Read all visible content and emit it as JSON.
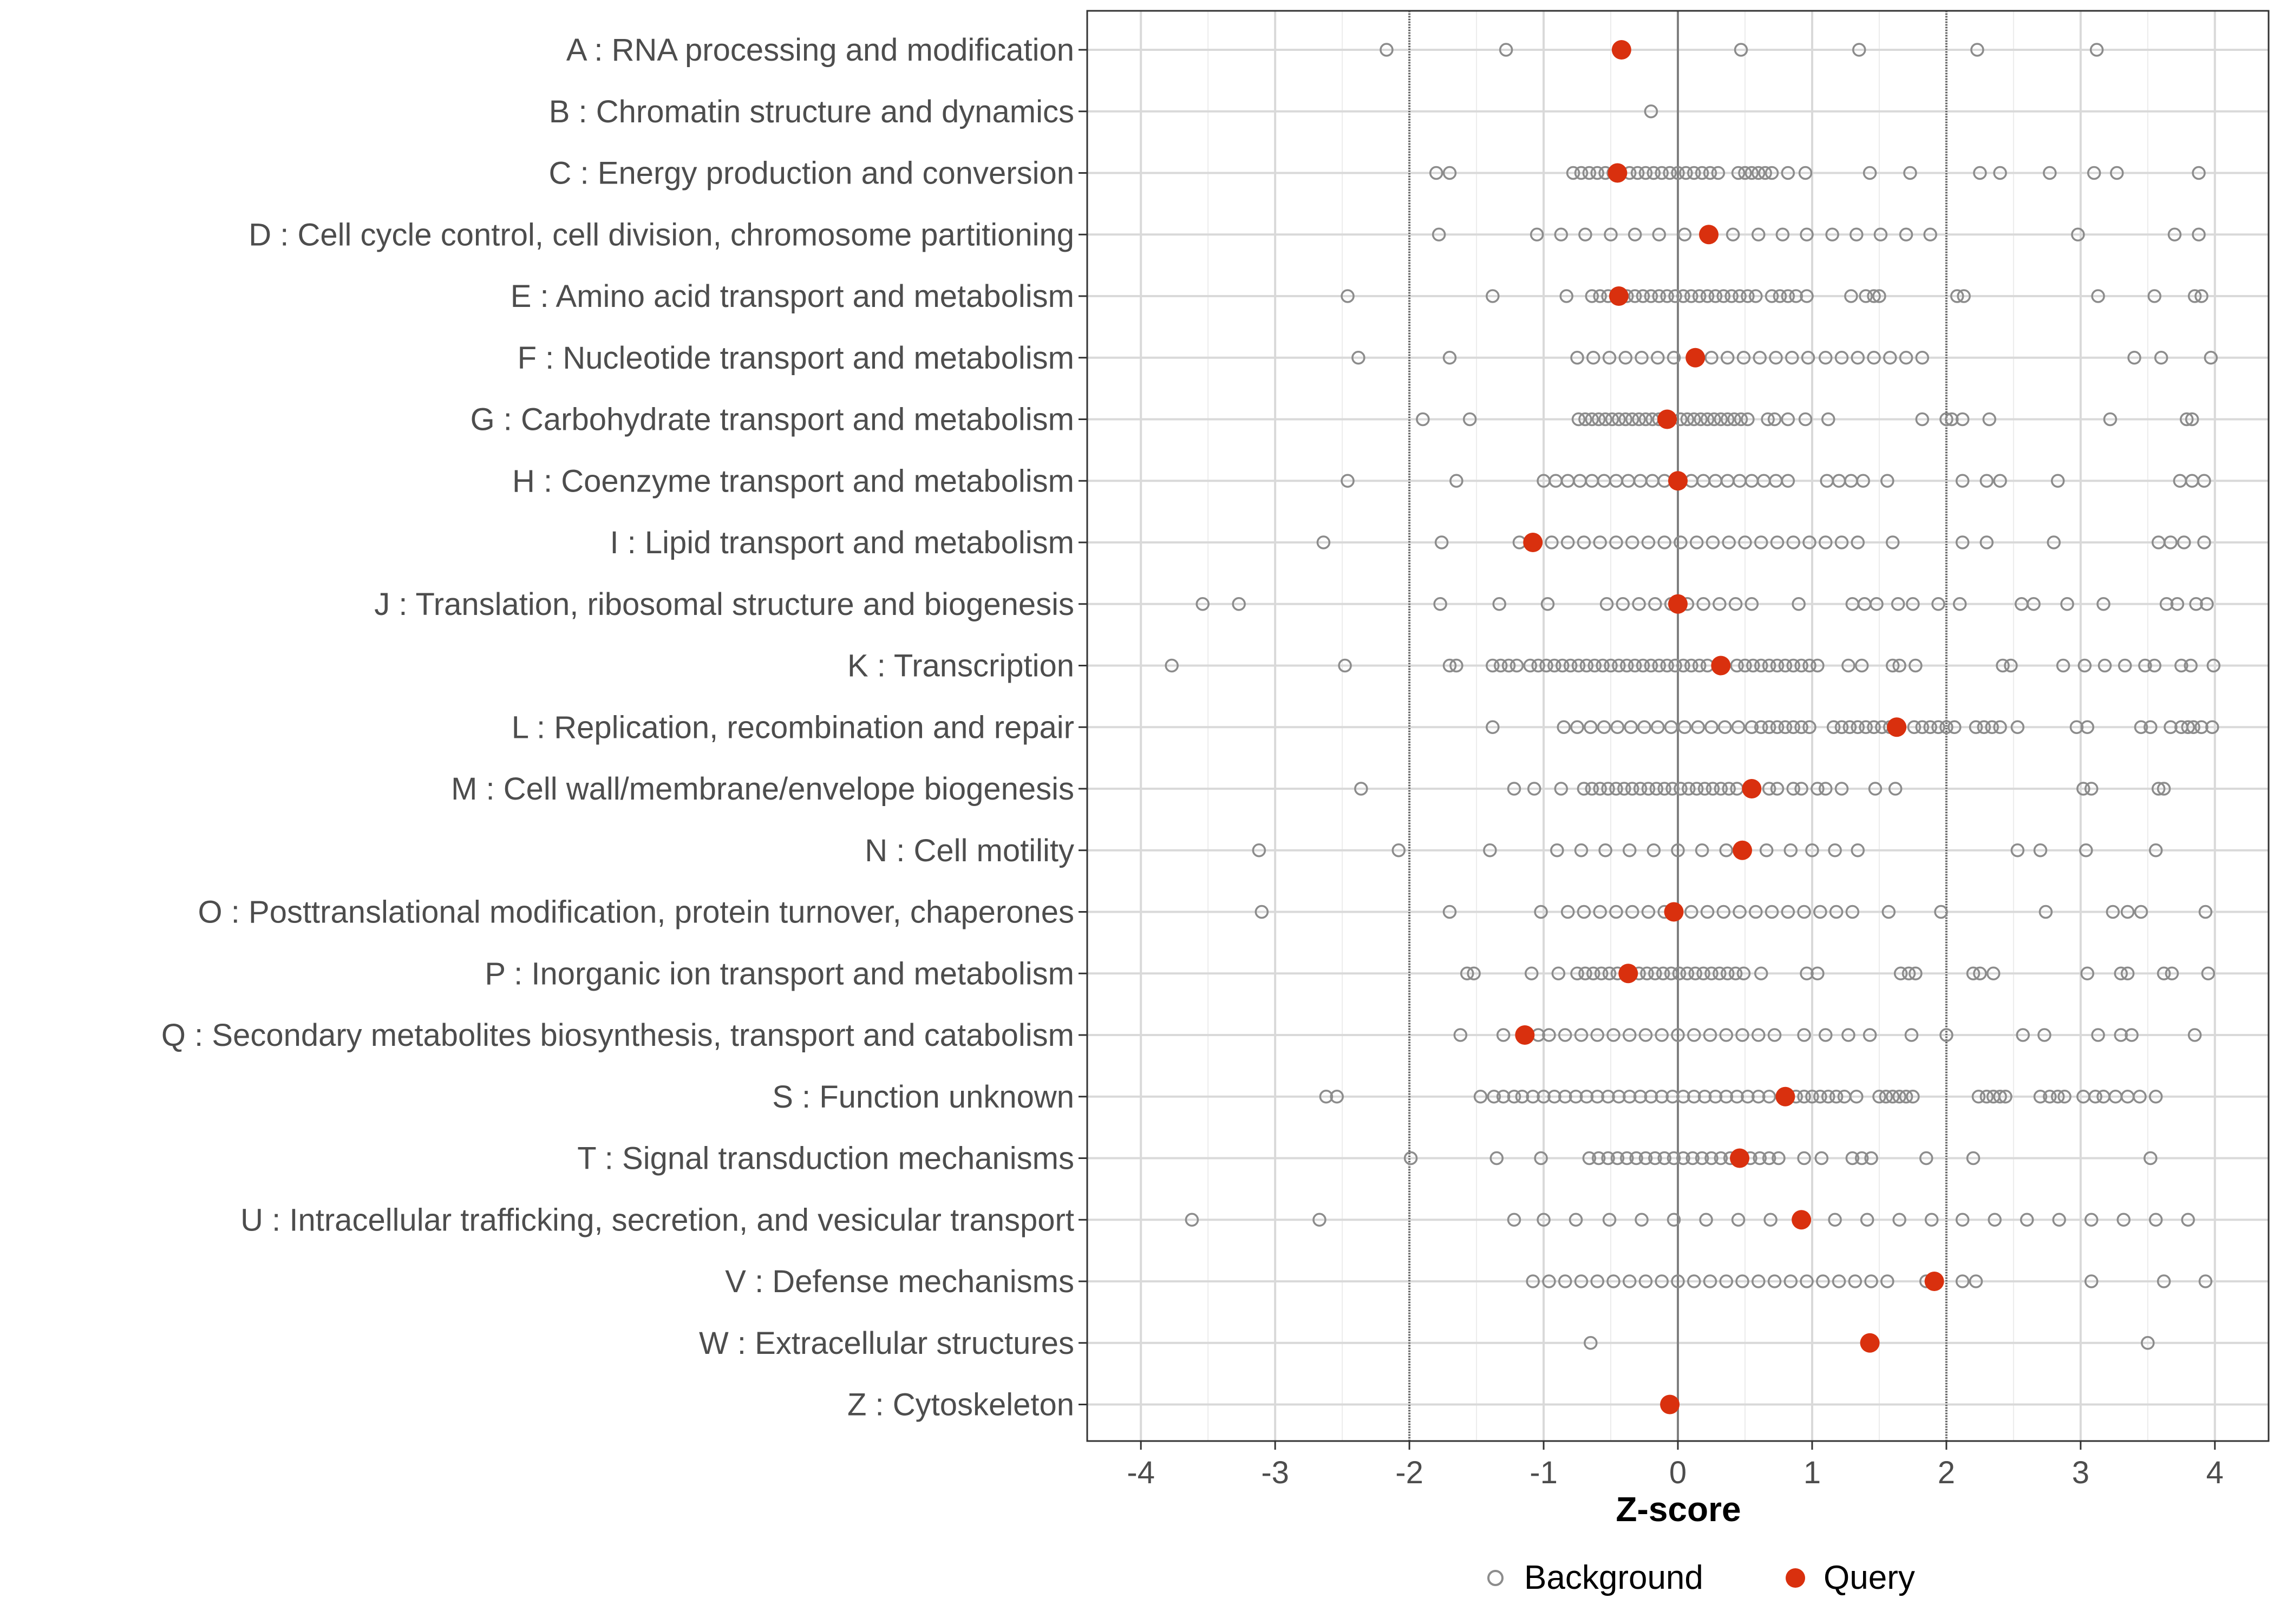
{
  "chart_data": {
    "type": "scatter",
    "xlabel": "Z-score",
    "xlim": [
      -4.4,
      4.4
    ],
    "xticks": [
      -4,
      -3,
      -2,
      -1,
      0,
      1,
      2,
      3,
      4
    ],
    "reference_lines": [
      -2,
      0,
      2
    ],
    "legend": {
      "position": "bottom",
      "entries": [
        {
          "label": "Background",
          "marker": "open-circle"
        },
        {
          "label": "Query",
          "marker": "filled-circle"
        }
      ]
    },
    "colors": {
      "background": "#8c8c8c",
      "query": "#d9300e",
      "grid": "#d9d9d9",
      "panel_border": "#333333",
      "reference": "#555555"
    },
    "categories": [
      {
        "label": "A : RNA processing and modification",
        "query": -0.42,
        "background": [
          -2.17,
          -1.28,
          0.47,
          1.35,
          2.23,
          3.12
        ]
      },
      {
        "label": "B : Chromatin structure and dynamics",
        "query": null,
        "background": [
          -0.2
        ]
      },
      {
        "label": "C : Energy production and conversion",
        "query": -0.45,
        "background": [
          -1.8,
          -1.7,
          -0.78,
          -0.72,
          -0.66,
          -0.6,
          -0.54,
          -0.48,
          -0.36,
          -0.3,
          -0.24,
          -0.18,
          -0.12,
          -0.06,
          0.0,
          0.06,
          0.12,
          0.18,
          0.24,
          0.3,
          0.45,
          0.5,
          0.55,
          0.6,
          0.65,
          0.7,
          0.82,
          0.95,
          1.43,
          1.73,
          2.25,
          2.4,
          2.77,
          3.1,
          3.27,
          3.88
        ]
      },
      {
        "label": "D : Cell cycle control, cell division, chromosome partitioning",
        "query": 0.23,
        "background": [
          -1.78,
          -1.05,
          -0.87,
          -0.69,
          -0.5,
          -0.32,
          -0.14,
          0.05,
          0.41,
          0.6,
          0.78,
          0.96,
          1.15,
          1.33,
          1.51,
          1.7,
          1.88,
          2.98,
          3.7,
          3.88
        ]
      },
      {
        "label": "E : Amino acid transport and metabolism",
        "query": -0.44,
        "background": [
          -2.46,
          -1.38,
          -0.83,
          -0.64,
          -0.58,
          -0.52,
          -0.38,
          -0.32,
          -0.26,
          -0.2,
          -0.14,
          -0.08,
          -0.02,
          0.04,
          0.1,
          0.16,
          0.22,
          0.28,
          0.34,
          0.4,
          0.46,
          0.52,
          0.58,
          0.7,
          0.76,
          0.82,
          0.88,
          0.96,
          1.29,
          1.4,
          1.46,
          1.5,
          2.08,
          2.13,
          3.13,
          3.55,
          3.85,
          3.9
        ]
      },
      {
        "label": "F : Nucleotide transport and metabolism",
        "query": 0.13,
        "background": [
          -2.38,
          -1.7,
          -0.75,
          -0.63,
          -0.51,
          -0.39,
          -0.27,
          -0.15,
          -0.03,
          0.25,
          0.37,
          0.49,
          0.61,
          0.73,
          0.85,
          0.97,
          1.1,
          1.22,
          1.34,
          1.46,
          1.58,
          1.7,
          1.82,
          3.4,
          3.6,
          3.97
        ]
      },
      {
        "label": "G : Carbohydrate transport and metabolism",
        "query": -0.08,
        "background": [
          -1.9,
          -1.55,
          -0.74,
          -0.69,
          -0.64,
          -0.59,
          -0.54,
          -0.49,
          -0.44,
          -0.39,
          -0.34,
          -0.29,
          -0.24,
          -0.19,
          -0.14,
          0.02,
          0.07,
          0.12,
          0.17,
          0.22,
          0.27,
          0.32,
          0.37,
          0.42,
          0.47,
          0.52,
          0.67,
          0.72,
          0.82,
          0.95,
          1.12,
          1.82,
          2.0,
          2.04,
          2.12,
          2.32,
          3.22,
          3.79,
          3.83
        ]
      },
      {
        "label": "H : Coenzyme transport and metabolism",
        "query": 0.0,
        "background": [
          -2.46,
          -1.65,
          -1.0,
          -0.91,
          -0.82,
          -0.73,
          -0.64,
          -0.55,
          -0.46,
          -0.37,
          -0.28,
          -0.19,
          -0.1,
          0.1,
          0.19,
          0.28,
          0.37,
          0.46,
          0.55,
          0.64,
          0.73,
          0.82,
          1.11,
          1.2,
          1.29,
          1.38,
          1.56,
          2.12,
          2.3,
          2.4,
          2.83,
          3.74,
          3.83,
          3.92
        ]
      },
      {
        "label": "I : Lipid transport and metabolism",
        "query": -1.08,
        "background": [
          -2.64,
          -1.76,
          -1.18,
          -0.94,
          -0.82,
          -0.7,
          -0.58,
          -0.46,
          -0.34,
          -0.22,
          -0.1,
          0.02,
          0.14,
          0.26,
          0.38,
          0.5,
          0.62,
          0.74,
          0.86,
          0.98,
          1.1,
          1.22,
          1.34,
          1.6,
          2.12,
          2.3,
          2.8,
          3.58,
          3.67,
          3.77,
          3.92
        ]
      },
      {
        "label": "J : Translation, ribosomal structure and biogenesis",
        "query": 0.0,
        "background": [
          -3.54,
          -3.27,
          -1.77,
          -1.33,
          -0.97,
          -0.53,
          -0.41,
          -0.29,
          -0.17,
          -0.05,
          0.07,
          0.19,
          0.31,
          0.43,
          0.55,
          0.9,
          1.3,
          1.39,
          1.48,
          1.64,
          1.75,
          1.94,
          2.1,
          2.56,
          2.65,
          2.9,
          3.17,
          3.64,
          3.72,
          3.86,
          3.94
        ]
      },
      {
        "label": "K : Transcription",
        "query": 0.32,
        "background": [
          -3.77,
          -2.48,
          -1.7,
          -1.65,
          -1.38,
          -1.32,
          -1.26,
          -1.2,
          -1.1,
          -1.04,
          -0.98,
          -0.92,
          -0.86,
          -0.8,
          -0.74,
          -0.68,
          -0.62,
          -0.56,
          -0.5,
          -0.44,
          -0.38,
          -0.32,
          -0.26,
          -0.2,
          -0.14,
          -0.08,
          -0.02,
          0.04,
          0.1,
          0.16,
          0.22,
          0.44,
          0.5,
          0.56,
          0.62,
          0.68,
          0.74,
          0.8,
          0.86,
          0.92,
          0.98,
          1.04,
          1.27,
          1.37,
          1.6,
          1.65,
          1.77,
          2.42,
          2.48,
          2.87,
          3.03,
          3.18,
          3.33,
          3.48,
          3.55,
          3.75,
          3.82,
          3.99
        ]
      },
      {
        "label": "L : Replication, recombination and repair",
        "query": 1.63,
        "background": [
          -1.38,
          -0.85,
          -0.75,
          -0.65,
          -0.55,
          -0.45,
          -0.35,
          -0.25,
          -0.15,
          -0.05,
          0.05,
          0.15,
          0.25,
          0.35,
          0.45,
          0.55,
          0.62,
          0.68,
          0.74,
          0.8,
          0.86,
          0.92,
          0.98,
          1.16,
          1.22,
          1.28,
          1.34,
          1.4,
          1.46,
          1.52,
          1.58,
          1.76,
          1.82,
          1.88,
          1.94,
          2.0,
          2.06,
          2.22,
          2.28,
          2.34,
          2.4,
          2.53,
          2.97,
          3.05,
          3.45,
          3.52,
          3.67,
          3.75,
          3.8,
          3.84,
          3.9,
          3.98
        ]
      },
      {
        "label": "M : Cell wall/membrane/envelope biogenesis",
        "query": 0.55,
        "background": [
          -2.36,
          -1.22,
          -1.07,
          -0.87,
          -0.7,
          -0.64,
          -0.58,
          -0.52,
          -0.46,
          -0.4,
          -0.34,
          -0.28,
          -0.22,
          -0.16,
          -0.1,
          -0.04,
          0.02,
          0.08,
          0.14,
          0.2,
          0.26,
          0.32,
          0.38,
          0.44,
          0.68,
          0.74,
          0.86,
          0.92,
          1.04,
          1.1,
          1.22,
          1.47,
          1.62,
          3.02,
          3.08,
          3.58,
          3.62
        ]
      },
      {
        "label": "N : Cell motility",
        "query": 0.48,
        "background": [
          -3.12,
          -2.08,
          -1.4,
          -0.9,
          -0.72,
          -0.54,
          -0.36,
          -0.18,
          0.0,
          0.18,
          0.36,
          0.66,
          0.84,
          1.0,
          1.17,
          1.34,
          2.53,
          2.7,
          3.04,
          3.56
        ]
      },
      {
        "label": "O : Posttranslational modification, protein turnover, chaperones",
        "query": -0.03,
        "background": [
          -3.1,
          -1.7,
          -1.02,
          -0.82,
          -0.7,
          -0.58,
          -0.46,
          -0.34,
          -0.22,
          -0.1,
          0.1,
          0.22,
          0.34,
          0.46,
          0.58,
          0.7,
          0.82,
          0.94,
          1.06,
          1.18,
          1.3,
          1.57,
          1.96,
          2.74,
          3.24,
          3.35,
          3.45,
          3.93
        ]
      },
      {
        "label": "P : Inorganic ion transport and metabolism",
        "query": -0.37,
        "background": [
          -1.57,
          -1.52,
          -1.09,
          -0.89,
          -0.75,
          -0.69,
          -0.63,
          -0.57,
          -0.51,
          -0.45,
          -0.29,
          -0.23,
          -0.17,
          -0.11,
          -0.05,
          0.01,
          0.07,
          0.13,
          0.19,
          0.25,
          0.31,
          0.37,
          0.43,
          0.49,
          0.62,
          0.96,
          1.04,
          1.66,
          1.72,
          1.77,
          2.2,
          2.25,
          2.35,
          3.05,
          3.3,
          3.35,
          3.62,
          3.68,
          3.95
        ]
      },
      {
        "label": "Q : Secondary metabolites biosynthesis, transport and catabolism",
        "query": -1.14,
        "background": [
          -1.62,
          -1.3,
          -1.04,
          -0.96,
          -0.84,
          -0.72,
          -0.6,
          -0.48,
          -0.36,
          -0.24,
          -0.12,
          0.0,
          0.12,
          0.24,
          0.36,
          0.48,
          0.6,
          0.72,
          0.94,
          1.1,
          1.27,
          1.43,
          1.74,
          2.0,
          2.57,
          2.73,
          3.13,
          3.3,
          3.38,
          3.85
        ]
      },
      {
        "label": "S : Function unknown",
        "query": 0.8,
        "background": [
          -2.62,
          -2.54,
          -1.47,
          -1.37,
          -1.3,
          -1.22,
          -1.16,
          -1.08,
          -1.0,
          -0.92,
          -0.84,
          -0.76,
          -0.68,
          -0.6,
          -0.52,
          -0.44,
          -0.36,
          -0.28,
          -0.2,
          -0.12,
          -0.04,
          0.04,
          0.12,
          0.2,
          0.28,
          0.36,
          0.44,
          0.52,
          0.6,
          0.68,
          0.88,
          0.94,
          1.0,
          1.06,
          1.12,
          1.18,
          1.24,
          1.33,
          1.5,
          1.55,
          1.6,
          1.65,
          1.7,
          1.75,
          2.24,
          2.3,
          2.35,
          2.4,
          2.44,
          2.7,
          2.77,
          2.83,
          2.88,
          3.02,
          3.11,
          3.17,
          3.26,
          3.35,
          3.44,
          3.56
        ]
      },
      {
        "label": "T : Signal transduction mechanisms",
        "query": 0.46,
        "background": [
          -1.99,
          -1.35,
          -1.02,
          -0.66,
          -0.59,
          -0.52,
          -0.45,
          -0.38,
          -0.31,
          -0.24,
          -0.17,
          -0.1,
          -0.03,
          0.04,
          0.11,
          0.18,
          0.25,
          0.32,
          0.39,
          0.54,
          0.61,
          0.68,
          0.75,
          0.94,
          1.07,
          1.3,
          1.37,
          1.44,
          1.85,
          2.2,
          3.52
        ]
      },
      {
        "label": "U : Intracellular trafficking, secretion, and vesicular transport",
        "query": 0.92,
        "background": [
          -3.62,
          -2.67,
          -1.22,
          -1.0,
          -0.76,
          -0.51,
          -0.27,
          -0.03,
          0.21,
          0.45,
          0.69,
          1.17,
          1.41,
          1.65,
          1.89,
          2.12,
          2.36,
          2.6,
          2.84,
          3.08,
          3.32,
          3.56,
          3.8
        ]
      },
      {
        "label": "V : Defense mechanisms",
        "query": 1.91,
        "background": [
          -1.08,
          -0.96,
          -0.84,
          -0.72,
          -0.6,
          -0.48,
          -0.36,
          -0.24,
          -0.12,
          0.0,
          0.12,
          0.24,
          0.36,
          0.48,
          0.6,
          0.72,
          0.84,
          0.96,
          1.08,
          1.2,
          1.32,
          1.44,
          1.56,
          1.85,
          2.12,
          2.22,
          3.08,
          3.62,
          3.93
        ]
      },
      {
        "label": "W : Extracellular structures",
        "query": 1.43,
        "background": [
          -0.65,
          3.5
        ]
      },
      {
        "label": "Z : Cytoskeleton",
        "query": -0.06,
        "background": []
      }
    ]
  }
}
